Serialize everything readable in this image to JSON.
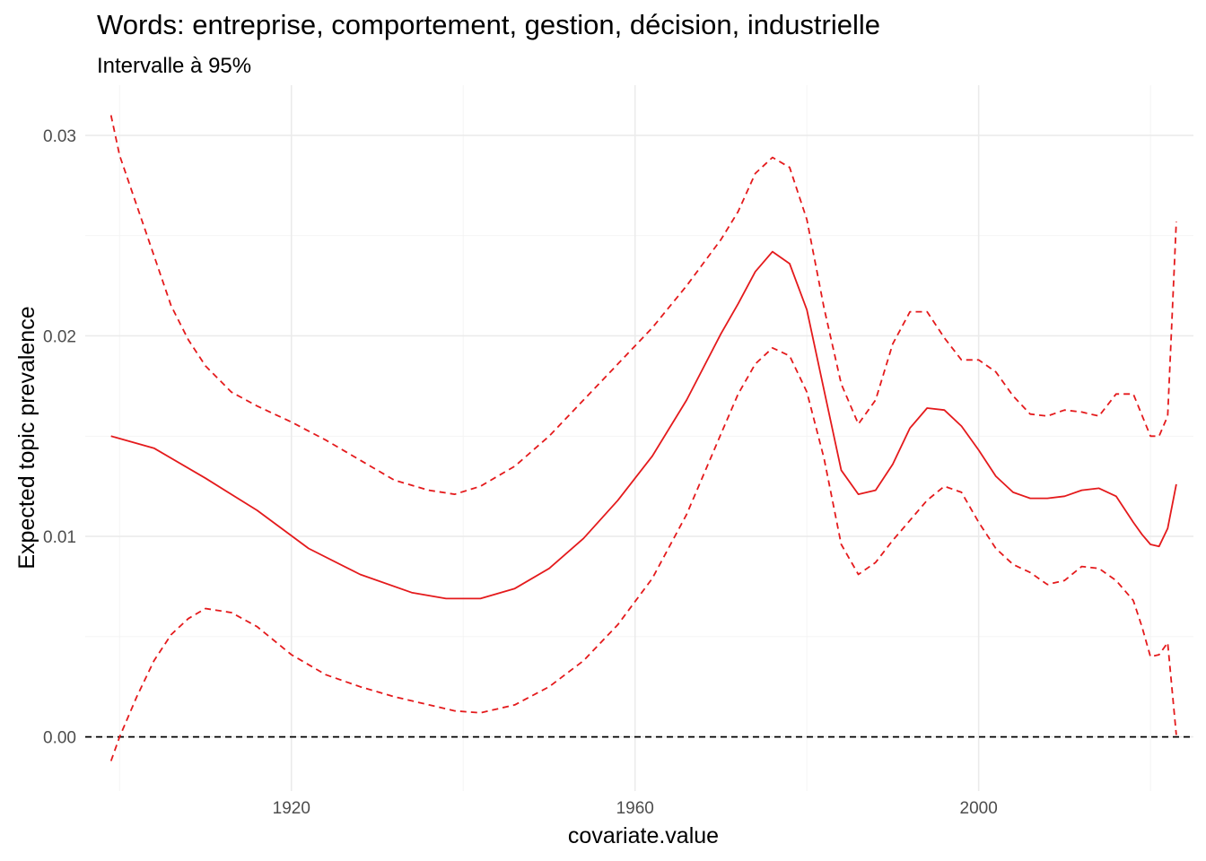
{
  "chart_data": {
    "type": "line",
    "title": "Words: entreprise, comportement, gestion, décision, industrielle",
    "subtitle": "Intervalle à 95%",
    "xlabel": "covariate.value",
    "ylabel": "Expected topic prevalence",
    "xlim": [
      1896,
      2025
    ],
    "ylim": [
      -0.0027,
      0.0325
    ],
    "x_ticks": [
      1920,
      1960,
      2000
    ],
    "x_tick_labels": [
      "1920",
      "1960",
      "2000"
    ],
    "x_minor_ticks": [
      1900,
      1940,
      1980,
      2020
    ],
    "y_ticks": [
      0.0,
      0.01,
      0.02,
      0.03
    ],
    "y_tick_labels": [
      "0.00",
      "0.01",
      "0.02",
      "0.03"
    ],
    "y_minor_ticks": [
      0.005,
      0.015,
      0.025
    ],
    "grid": true,
    "colors": {
      "line": "#e41a1c",
      "ci": "#e41a1c",
      "reference": "#000000",
      "grid": "#ebebeb"
    },
    "reference_line": {
      "y": 0.0,
      "style": "dashed"
    },
    "series": [
      {
        "role": "estimate",
        "style": "solid",
        "x": [
          1899,
          1904,
          1910,
          1916,
          1922,
          1928,
          1934,
          1938,
          1942,
          1946,
          1950,
          1954,
          1958,
          1962,
          1966,
          1970,
          1972,
          1974,
          1976,
          1978,
          1980,
          1982,
          1984,
          1986,
          1988,
          1990,
          1992,
          1994,
          1996,
          1998,
          2000,
          2002,
          2004,
          2006,
          2008,
          2010,
          2012,
          2014,
          2016,
          2018,
          2019,
          2020,
          2021,
          2022,
          2023
        ],
        "values": [
          0.015,
          0.0144,
          0.0129,
          0.0113,
          0.0094,
          0.0081,
          0.0072,
          0.0069,
          0.0069,
          0.0074,
          0.0084,
          0.0099,
          0.0118,
          0.014,
          0.0168,
          0.0201,
          0.0216,
          0.0232,
          0.0242,
          0.0236,
          0.0213,
          0.0173,
          0.0133,
          0.0121,
          0.0123,
          0.0136,
          0.0154,
          0.0164,
          0.0163,
          0.0155,
          0.0143,
          0.013,
          0.0122,
          0.0119,
          0.0119,
          0.012,
          0.0123,
          0.0124,
          0.012,
          0.0107,
          0.0101,
          0.0096,
          0.0095,
          0.0104,
          0.0126
        ]
      },
      {
        "role": "upper",
        "style": "dashed",
        "x": [
          1899,
          1900,
          1902,
          1904,
          1906,
          1908,
          1910,
          1913,
          1916,
          1920,
          1924,
          1928,
          1932,
          1936,
          1939,
          1942,
          1946,
          1950,
          1954,
          1958,
          1962,
          1966,
          1970,
          1972,
          1974,
          1976,
          1978,
          1980,
          1982,
          1984,
          1986,
          1988,
          1990,
          1992,
          1994,
          1996,
          1998,
          2000,
          2002,
          2004,
          2006,
          2008,
          2010,
          2012,
          2014,
          2016,
          2018,
          2020,
          2021,
          2022,
          2023
        ],
        "values": [
          0.031,
          0.029,
          0.0265,
          0.024,
          0.0215,
          0.0198,
          0.0185,
          0.0172,
          0.0165,
          0.0157,
          0.0148,
          0.0138,
          0.0128,
          0.0123,
          0.0121,
          0.0125,
          0.0135,
          0.015,
          0.0168,
          0.0186,
          0.0204,
          0.0225,
          0.0248,
          0.0262,
          0.0281,
          0.0289,
          0.0284,
          0.0258,
          0.0214,
          0.0176,
          0.0156,
          0.0168,
          0.0196,
          0.0212,
          0.0212,
          0.0199,
          0.0188,
          0.0188,
          0.0182,
          0.017,
          0.0161,
          0.016,
          0.0163,
          0.0162,
          0.016,
          0.0171,
          0.0171,
          0.015,
          0.015,
          0.016,
          0.0257
        ]
      },
      {
        "role": "lower",
        "style": "dashed",
        "x": [
          1899,
          1900,
          1902,
          1904,
          1906,
          1908,
          1910,
          1913,
          1916,
          1920,
          1924,
          1928,
          1932,
          1936,
          1939,
          1942,
          1946,
          1950,
          1954,
          1958,
          1962,
          1966,
          1970,
          1972,
          1974,
          1976,
          1978,
          1980,
          1982,
          1984,
          1986,
          1988,
          1990,
          1992,
          1994,
          1996,
          1998,
          2000,
          2002,
          2004,
          2006,
          2008,
          2010,
          2012,
          2014,
          2016,
          2018,
          2019,
          2020,
          2021,
          2022,
          2023
        ],
        "values": [
          -0.0012,
          0.0,
          0.002,
          0.0038,
          0.0051,
          0.0059,
          0.0064,
          0.0062,
          0.0055,
          0.0041,
          0.0031,
          0.0025,
          0.002,
          0.0016,
          0.0013,
          0.0012,
          0.0016,
          0.0025,
          0.0038,
          0.0056,
          0.0079,
          0.0111,
          0.0151,
          0.0171,
          0.0186,
          0.0194,
          0.019,
          0.0172,
          0.0139,
          0.0096,
          0.0081,
          0.0087,
          0.0098,
          0.0108,
          0.0118,
          0.0125,
          0.0122,
          0.0107,
          0.0094,
          0.0086,
          0.0082,
          0.0076,
          0.0078,
          0.0085,
          0.0084,
          0.0078,
          0.0068,
          0.0055,
          0.004,
          0.0041,
          0.0047,
          0.0001
        ]
      }
    ]
  }
}
